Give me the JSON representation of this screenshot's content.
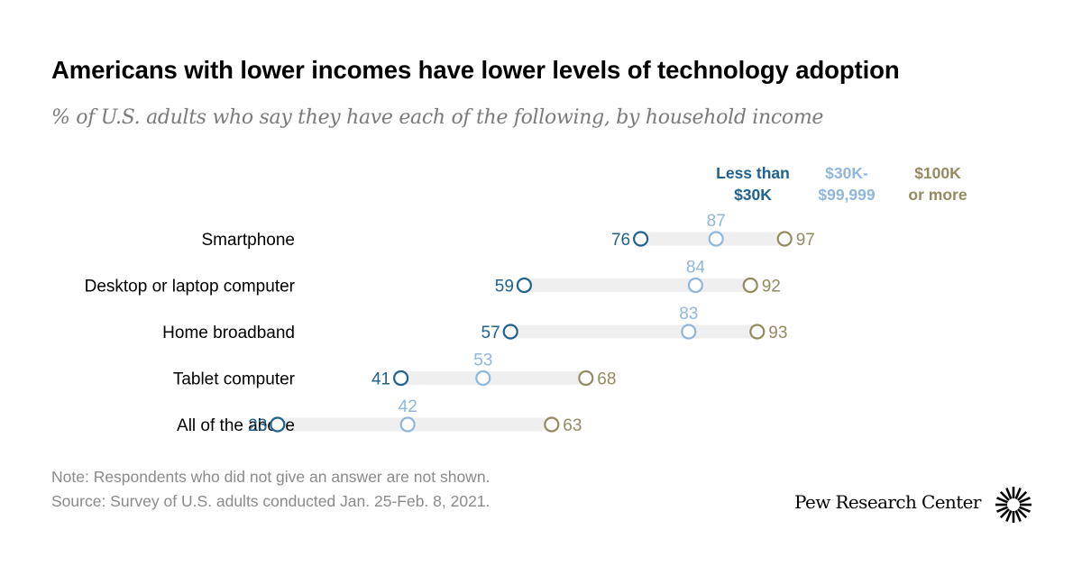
{
  "title": "Americans with lower incomes have lower levels of technology adoption",
  "subtitle": "% of U.S. adults who say they have each of the following, by household income",
  "legend": [
    {
      "line1": "Less than",
      "line2": "$30K",
      "color": "#20628f"
    },
    {
      "line1": "$30K-",
      "line2": "$99,999",
      "color": "#8fb6dd"
    },
    {
      "line1": "$100K",
      "line2": "or more",
      "color": "#948a5f"
    }
  ],
  "chart_data": {
    "type": "dot",
    "title": "Americans with lower incomes have lower levels of technology adoption",
    "subtitle": "% of U.S. adults who say they have each of the following, by household income",
    "categories": [
      "Smartphone",
      "Desktop or laptop computer",
      "Home broadband",
      "Tablet computer",
      "All of the above"
    ],
    "series": [
      {
        "name": "Less than $30K",
        "color": "#20628f",
        "values": [
          76,
          59,
          57,
          41,
          23
        ]
      },
      {
        "name": "$30K-$99,999",
        "color": "#8fb6dd",
        "values": [
          87,
          84,
          83,
          53,
          42
        ]
      },
      {
        "name": "$100K or more",
        "color": "#948a5f",
        "values": [
          97,
          92,
          93,
          68,
          63
        ]
      }
    ],
    "xlim": [
      0,
      100
    ],
    "grid": false
  },
  "notes": {
    "note": "Note: Respondents who did not give an answer are not shown.",
    "source": "Source: Survey of U.S. adults conducted Jan. 25-Feb. 8, 2021."
  },
  "brand": {
    "name": "Pew Research Center",
    "logo_icon": "pew-sunburst-icon"
  }
}
